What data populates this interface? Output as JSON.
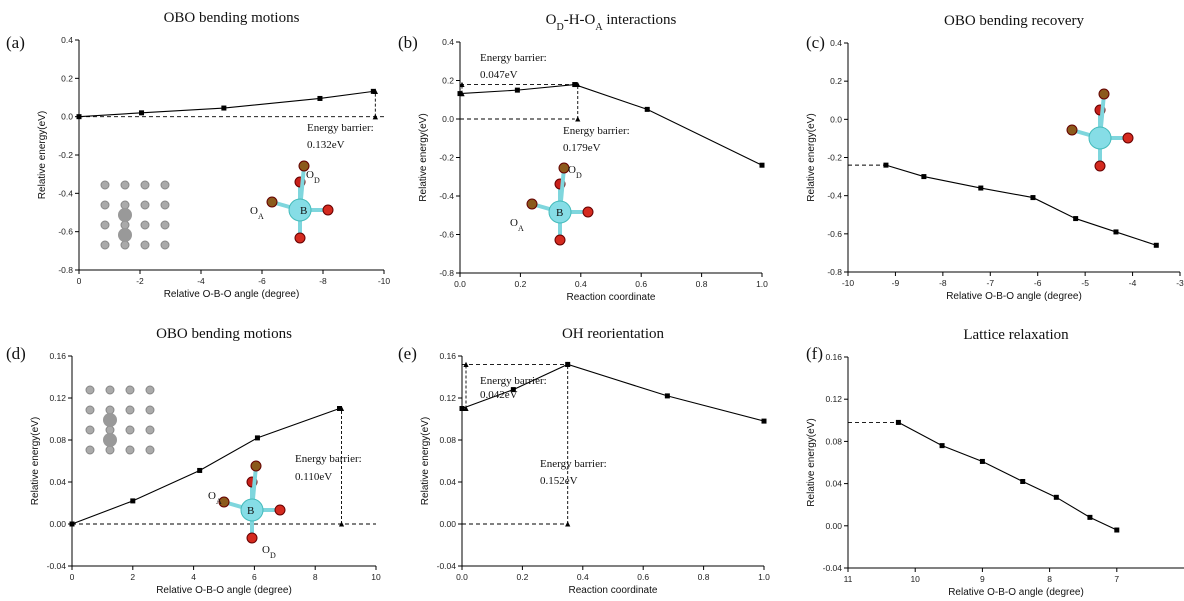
{
  "chart_data": [
    {
      "type": "line",
      "label": "(a)",
      "title": "OBO bending motions",
      "x_label": "Relative O-B-O angle (degree)",
      "y_label": "Relative energy(eV)",
      "x": [
        0,
        -2.05,
        -4.75,
        -7.9,
        -9.65
      ],
      "values": [
        0,
        0.02,
        0.045,
        0.095,
        0.132
      ],
      "color": "#000000",
      "xlim": [
        0,
        -10
      ],
      "xticks": [
        0,
        -2,
        -4,
        -6,
        -8,
        -10
      ],
      "ylim": [
        -0.8,
        0.4
      ],
      "yticks": [
        -0.8,
        -0.6,
        -0.4,
        -0.2,
        {
          "value": 0,
          "label": "0.0"
        },
        0.2,
        0.4
      ],
      "annotations": [
        "Energy barrier:",
        "0.132eV"
      ],
      "inset_labels": [
        [
          "O",
          "D"
        ],
        [
          "O",
          "A"
        ],
        [
          "B"
        ]
      ]
    },
    {
      "type": "line",
      "label": "(b)",
      "title": [
        "O",
        "D",
        "-H-O",
        "A",
        " interactions"
      ],
      "x_label": "Reaction coordinate",
      "y_label": "Relative energy(eV)",
      "x": [
        0,
        0.19,
        0.38,
        0.62,
        1.0
      ],
      "values": [
        0.132,
        0.15,
        0.179,
        0.05,
        -0.24
      ],
      "color": "#000000",
      "xlim": [
        0,
        1
      ],
      "xticks": [
        {
          "value": 0,
          "label": "0.0"
        },
        0.2,
        0.4,
        0.6,
        0.8,
        {
          "value": 1,
          "label": "1.0"
        }
      ],
      "ylim": [
        -0.8,
        0.4
      ],
      "yticks": [
        -0.8,
        -0.6,
        -0.4,
        -0.2,
        {
          "value": 0,
          "label": "0.0"
        },
        0.2,
        0.4
      ],
      "annotations": [
        "Energy barrier:",
        "0.047eV",
        "Energy barrier:",
        "0.179eV"
      ],
      "inset_labels": [
        [
          "O",
          "D"
        ],
        [
          "O",
          "A"
        ],
        [
          "B"
        ]
      ]
    },
    {
      "type": "line",
      "label": "(c)",
      "title": "OBO bending recovery",
      "x_label": "Relative O-B-O angle (degree)",
      "y_label": "Relative energy(eV)",
      "x": [
        -9.2,
        -8.4,
        -7.2,
        -6.1,
        -5.2,
        -4.35,
        -3.5
      ],
      "values": [
        -0.24,
        -0.3,
        -0.36,
        -0.41,
        -0.52,
        -0.59,
        -0.66
      ],
      "color": "#000000",
      "xlim": [
        -10,
        -3
      ],
      "xticks": [
        -10,
        -9,
        -8,
        -7,
        -6,
        -5,
        -4,
        -3
      ],
      "ylim": [
        -0.8,
        0.4
      ],
      "yticks": [
        -0.8,
        -0.6,
        -0.4,
        -0.2,
        {
          "value": 0,
          "label": "0.0"
        },
        0.2,
        0.4
      ]
    },
    {
      "type": "line",
      "label": "(d)",
      "title": "OBO bending motions",
      "x_label": "Relative O-B-O angle (degree)",
      "y_label": "Relative energy(eV)",
      "x": [
        0,
        2,
        4.2,
        6.1,
        8.8
      ],
      "values": [
        0,
        0.022,
        0.051,
        0.082,
        0.11
      ],
      "color": "#000000",
      "xlim": [
        0,
        10
      ],
      "xticks": [
        0,
        2,
        4,
        6,
        8,
        10
      ],
      "ylim": [
        -0.04,
        0.16
      ],
      "yticks": [
        -0.04,
        {
          "value": 0,
          "label": "0.00"
        },
        0.04,
        0.08,
        0.12,
        0.16
      ],
      "annotations": [
        "Energy barrier:",
        "0.110eV"
      ],
      "inset_labels": [
        [
          "O",
          "A"
        ],
        [
          "B"
        ],
        [
          "O",
          "D"
        ]
      ]
    },
    {
      "type": "line",
      "label": "(e)",
      "title": "OH reorientation",
      "x_label": "Reaction coordinate",
      "y_label": "Relative energy(eV)",
      "x": [
        0,
        0.17,
        0.35,
        0.68,
        1.0
      ],
      "values": [
        0.11,
        0.128,
        0.152,
        0.122,
        0.098
      ],
      "color": "#000000",
      "xlim": [
        0,
        1
      ],
      "xticks": [
        {
          "value": 0,
          "label": "0.0"
        },
        0.2,
        0.4,
        0.6,
        0.8,
        {
          "value": 1,
          "label": "1.0"
        }
      ],
      "ylim": [
        -0.04,
        0.16
      ],
      "yticks": [
        -0.04,
        {
          "value": 0,
          "label": "0.00"
        },
        0.04,
        0.08,
        0.12,
        0.16
      ],
      "annotations": [
        "Energy barrier:",
        "0.042eV",
        "Energy barrier:",
        "0.152eV"
      ]
    },
    {
      "type": "line",
      "label": "(f)",
      "title": "Lattice relaxation",
      "x_label": "Relative O-B-O angle (degree)",
      "y_label": "Relative energy(eV)",
      "x": [
        10.25,
        9.6,
        9.0,
        8.4,
        7.9,
        7.4,
        7.0
      ],
      "values": [
        0.098,
        0.076,
        0.061,
        0.042,
        0.027,
        0.008,
        -0.004
      ],
      "color": "#000000",
      "xlim": [
        11,
        6
      ],
      "xticks": [
        11,
        10,
        9,
        8,
        7
      ],
      "ylim": [
        -0.04,
        0.16
      ],
      "yticks": [
        -0.04,
        {
          "value": 0,
          "label": "0.00"
        },
        0.04,
        0.08,
        0.12,
        0.16
      ]
    }
  ]
}
